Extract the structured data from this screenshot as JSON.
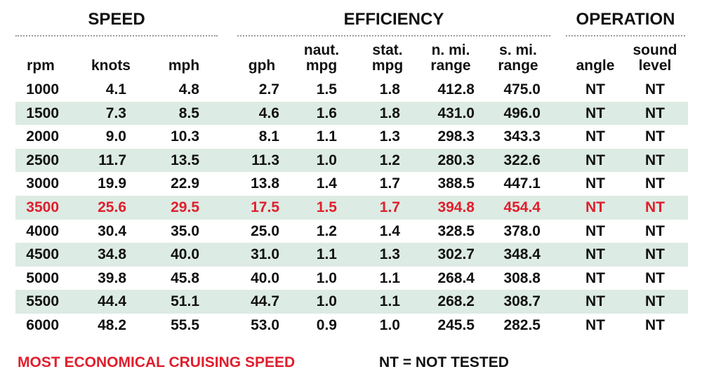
{
  "groups": {
    "speed": "SPEED",
    "efficiency": "EFFICIENCY",
    "operation": "OPERATION"
  },
  "columns": [
    "rpm",
    "knots",
    "mph",
    "gph",
    "naut. mpg",
    "stat. mpg",
    "n. mi. range",
    "s. mi. range",
    "angle",
    "sound level"
  ],
  "rows": [
    [
      "1000",
      "4.1",
      "4.8",
      "2.7",
      "1.5",
      "1.8",
      "412.8",
      "475.0",
      "NT",
      "NT"
    ],
    [
      "1500",
      "7.3",
      "8.5",
      "4.6",
      "1.6",
      "1.8",
      "431.0",
      "496.0",
      "NT",
      "NT"
    ],
    [
      "2000",
      "9.0",
      "10.3",
      "8.1",
      "1.1",
      "1.3",
      "298.3",
      "343.3",
      "NT",
      "NT"
    ],
    [
      "2500",
      "11.7",
      "13.5",
      "11.3",
      "1.0",
      "1.2",
      "280.3",
      "322.6",
      "NT",
      "NT"
    ],
    [
      "3000",
      "19.9",
      "22.9",
      "13.8",
      "1.4",
      "1.7",
      "388.5",
      "447.1",
      "NT",
      "NT"
    ],
    [
      "3500",
      "25.6",
      "29.5",
      "17.5",
      "1.5",
      "1.7",
      "394.8",
      "454.4",
      "NT",
      "NT"
    ],
    [
      "4000",
      "30.4",
      "35.0",
      "25.0",
      "1.2",
      "1.4",
      "328.5",
      "378.0",
      "NT",
      "NT"
    ],
    [
      "4500",
      "34.8",
      "40.0",
      "31.0",
      "1.1",
      "1.3",
      "302.7",
      "348.4",
      "NT",
      "NT"
    ],
    [
      "5000",
      "39.8",
      "45.8",
      "40.0",
      "1.0",
      "1.1",
      "268.4",
      "308.8",
      "NT",
      "NT"
    ],
    [
      "5500",
      "44.4",
      "51.1",
      "44.7",
      "1.0",
      "1.1",
      "268.2",
      "308.7",
      "NT",
      "NT"
    ],
    [
      "6000",
      "48.2",
      "55.5",
      "53.0",
      "0.9",
      "1.0",
      "245.5",
      "282.5",
      "NT",
      "NT"
    ]
  ],
  "highlight_row_index": 5,
  "shaded_row_indices": [
    1,
    3,
    5,
    7,
    9
  ],
  "colors": {
    "highlight": "#e01e2d",
    "row_shade": "#dcebe3",
    "text": "#111111"
  },
  "legend": {
    "highlight_label": "MOST ECONOMICAL CRUISING SPEED",
    "nt_label": "NT = NOT TESTED"
  }
}
